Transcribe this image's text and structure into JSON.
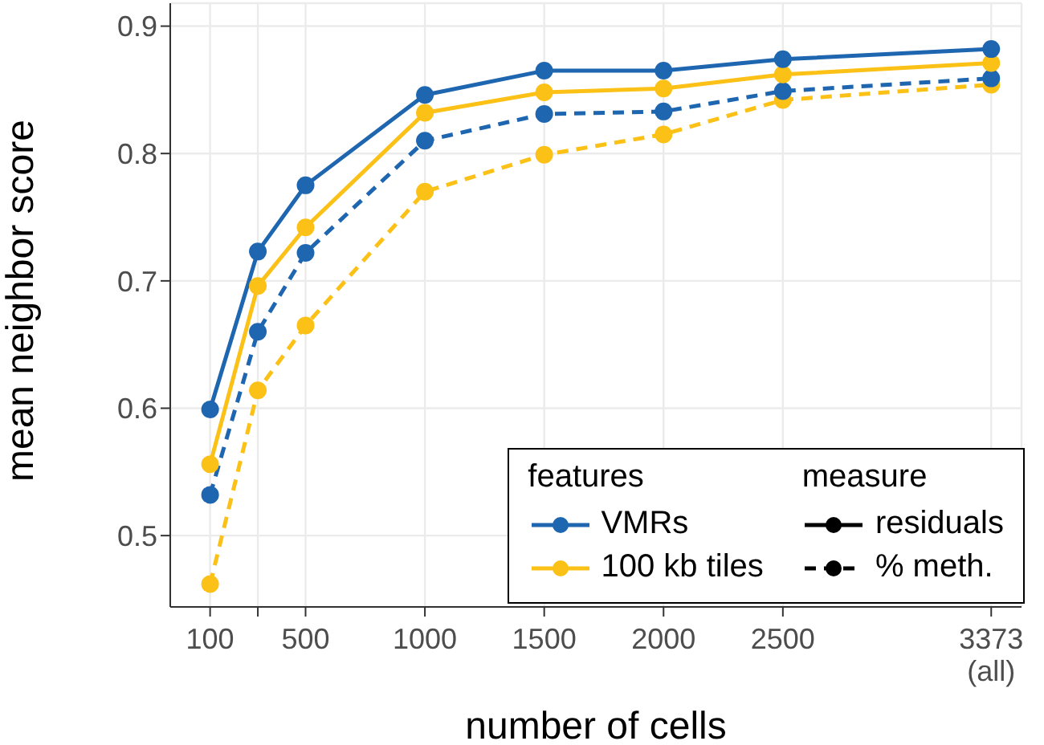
{
  "chart_data": {
    "type": "line",
    "xlabel": "number of cells",
    "ylabel": "mean neighbor score",
    "legend_title": "features",
    "x": [
      100,
      300,
      500,
      1000,
      1500,
      2000,
      2500,
      3373
    ],
    "xlim": [
      -67,
      3500
    ],
    "xticks": [
      100,
      {
        "value": 300,
        "label": null
      },
      500,
      1000,
      1500,
      2000,
      2500,
      {
        "value": 3373,
        "label": "3373\n(all)"
      }
    ],
    "ylim": [
      0.444,
      0.918
    ],
    "yticks": [
      0.5,
      0.6,
      0.7,
      0.8,
      0.9
    ],
    "grid": true,
    "legend": "bottom right",
    "marker": "circle",
    "series": [
      {
        "name": "VMRs",
        "color": "#1f66b0",
        "line_style": "solid",
        "values": [
          0.599,
          0.723,
          0.775,
          0.846,
          0.865,
          0.865,
          0.874,
          0.882
        ]
      },
      {
        "name": "100 kb tiles",
        "color": "#fbc117",
        "line_style": "solid",
        "values": [
          0.556,
          0.696,
          0.742,
          0.832,
          0.848,
          0.851,
          0.862,
          0.871
        ]
      },
      {
        "color": "#1f66b0",
        "line_style": "dashed",
        "values": [
          0.532,
          0.66,
          0.722,
          0.81,
          0.831,
          0.833,
          0.849,
          0.859
        ]
      },
      {
        "color": "#fbc117",
        "line_style": "dashed",
        "values": [
          0.462,
          0.614,
          0.665,
          0.77,
          0.799,
          0.815,
          0.842,
          0.854
        ]
      }
    ],
    "annotations": [
      "measure",
      "residuals",
      "% meth."
    ]
  }
}
